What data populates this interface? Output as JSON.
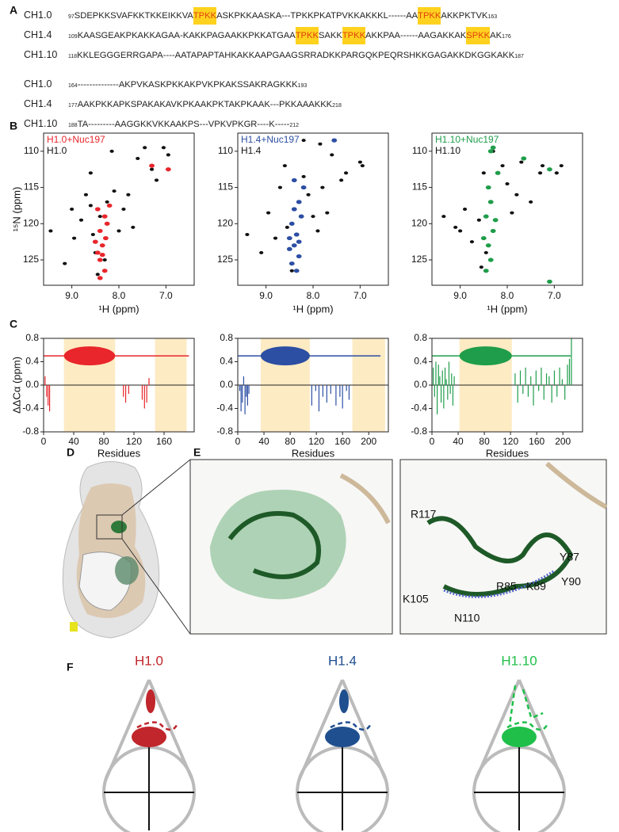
{
  "panel_labels": [
    "A",
    "B",
    "C",
    "D",
    "E",
    "F"
  ],
  "sequences": [
    [
      {
        "name": "CH1.0",
        "start": 97,
        "segments": [
          {
            "text": "SDEPKKSVAFKKTKKEIKKVA",
            "highlight": false
          },
          {
            "text": "TPKK",
            "highlight": true
          },
          {
            "text": "ASKPKKAASKA---TPKKPKATPVKKAKKKL------AA",
            "highlight": false
          },
          {
            "text": "TPKK",
            "highlight": true
          },
          {
            "text": "AKKPKTVK",
            "highlight": false
          }
        ],
        "end": 163
      },
      {
        "name": "CH1.4",
        "start": 109,
        "segments": [
          {
            "text": "KAASGEAKPKAKKAGAA-KAKKPAGAAKKPKKATGAA",
            "highlight": false
          },
          {
            "text": "TPKK",
            "highlight": true
          },
          {
            "text": "SAKK",
            "highlight": false
          },
          {
            "text": "TPKK",
            "highlight": true
          },
          {
            "text": "AKKPAA------AAGAKKAK",
            "highlight": false
          },
          {
            "text": "SPKK",
            "highlight": true
          },
          {
            "text": "AK",
            "highlight": false
          }
        ],
        "end": 176
      },
      {
        "name": "CH1.10",
        "start": 118,
        "segments": [
          {
            "text": "KKLEGGGERRGAPA----AATAPAPTAHKAKKAAPGAAGSRRADKKPARGQKPEQRSHKKGAGAKKDKGGKAKK",
            "highlight": false
          }
        ],
        "end": 187
      }
    ],
    [
      {
        "name": "CH1.0",
        "start": 164,
        "segments": [
          {
            "text": "--------------AKPVKASKPKKAKPVKPKAKSSAKRAGKKK",
            "highlight": false
          }
        ],
        "end": 193
      },
      {
        "name": "CH1.4",
        "start": 177,
        "segments": [
          {
            "text": "AAKPKKAPKSPAKAKAVKPKAAKPKTAKPKAAK---PKKAAAKKK",
            "highlight": false
          }
        ],
        "end": 218
      },
      {
        "name": "CH1.10",
        "start": 188,
        "segments": [
          {
            "text": "TA---------AAGGKKVKKAAKPS---VPKVPKGR----K-----",
            "highlight": false
          }
        ],
        "end": 212
      }
    ]
  ],
  "nmr_axes": {
    "xlim": [
      9.6,
      6.4
    ],
    "xticks": [
      {
        "value": 9,
        "label": "9.0"
      },
      {
        "value": 8,
        "label": "8.0"
      },
      {
        "value": 7,
        "label": "7.0"
      }
    ],
    "ylim": [
      107.5,
      128.5
    ],
    "yticks": [
      110,
      115,
      120,
      125
    ],
    "x_label": "¹H (ppm)",
    "y_label": "¹⁵N (ppm)"
  },
  "nmr": [
    {
      "type": "scatter",
      "legend_bound": "H1.0+Nuc197",
      "legend_free": "H1.0",
      "color": "#e8262b",
      "free": [
        [
          9.45,
          121
        ],
        [
          9.15,
          125.5
        ],
        [
          9.0,
          118
        ],
        [
          8.95,
          122
        ],
        [
          8.8,
          119.5
        ],
        [
          8.7,
          116
        ],
        [
          8.6,
          113
        ],
        [
          8.55,
          121.5
        ],
        [
          8.5,
          124
        ],
        [
          8.45,
          127
        ],
        [
          8.4,
          119
        ],
        [
          8.3,
          125
        ],
        [
          8.25,
          117
        ],
        [
          8.15,
          110
        ],
        [
          8.1,
          115.5
        ],
        [
          8.0,
          121
        ],
        [
          7.9,
          118
        ],
        [
          7.8,
          116
        ],
        [
          7.7,
          120.5
        ],
        [
          7.6,
          111
        ],
        [
          7.45,
          109.5
        ],
        [
          7.3,
          112.5
        ],
        [
          7.2,
          114
        ],
        [
          7.05,
          109.5
        ],
        [
          6.95,
          110.5
        ],
        [
          8.6,
          117.5
        ]
      ],
      "bound": [
        [
          8.45,
          118
        ],
        [
          8.4,
          121
        ],
        [
          8.35,
          123
        ],
        [
          8.4,
          125
        ],
        [
          8.3,
          126.5
        ],
        [
          8.25,
          120
        ],
        [
          8.45,
          124
        ],
        [
          8.3,
          119
        ],
        [
          8.2,
          117.5
        ],
        [
          8.4,
          127.5
        ],
        [
          8.5,
          122.5
        ],
        [
          7.3,
          112
        ],
        [
          6.95,
          112.5
        ],
        [
          8.35,
          124.3
        ],
        [
          8.28,
          122
        ]
      ]
    },
    {
      "type": "scatter",
      "legend_bound": "H1.4+Nuc197",
      "legend_free": "H1.4",
      "color": "#2c4ea3",
      "free": [
        [
          9.4,
          121.5
        ],
        [
          9.1,
          124
        ],
        [
          8.95,
          118.5
        ],
        [
          8.8,
          122
        ],
        [
          8.7,
          115
        ],
        [
          8.6,
          112
        ],
        [
          8.55,
          120.5
        ],
        [
          8.45,
          126.5
        ],
        [
          8.2,
          113.5
        ],
        [
          8.1,
          116
        ],
        [
          8.0,
          119
        ],
        [
          7.9,
          121
        ],
        [
          7.8,
          115
        ],
        [
          7.7,
          118.5
        ],
        [
          7.6,
          110.5
        ],
        [
          7.4,
          114
        ],
        [
          7.3,
          113
        ],
        [
          7.0,
          111.5
        ],
        [
          6.95,
          112
        ],
        [
          8.2,
          108.5
        ],
        [
          7.85,
          109
        ]
      ],
      "bound": [
        [
          8.4,
          118
        ],
        [
          8.45,
          120
        ],
        [
          8.35,
          121.5
        ],
        [
          8.4,
          123
        ],
        [
          8.3,
          124.5
        ],
        [
          8.45,
          125.5
        ],
        [
          8.35,
          126.5
        ],
        [
          8.25,
          119
        ],
        [
          8.5,
          122
        ],
        [
          8.3,
          117
        ],
        [
          8.2,
          115
        ],
        [
          8.4,
          114
        ],
        [
          8.5,
          123.5
        ],
        [
          8.3,
          122.5
        ],
        [
          7.55,
          108.5
        ]
      ]
    },
    {
      "type": "scatter",
      "legend_bound": "H1.10+Nuc197",
      "legend_free": "H1.10",
      "color": "#1f9d4a",
      "free": [
        [
          9.35,
          119
        ],
        [
          9.1,
          120.5
        ],
        [
          9.0,
          121
        ],
        [
          8.9,
          118
        ],
        [
          8.75,
          122.5
        ],
        [
          8.6,
          119.5
        ],
        [
          8.5,
          113
        ],
        [
          8.45,
          124
        ],
        [
          8.3,
          110
        ],
        [
          8.1,
          112
        ],
        [
          8.0,
          114.5
        ],
        [
          7.9,
          118.5
        ],
        [
          7.8,
          116
        ],
        [
          7.7,
          111.5
        ],
        [
          7.5,
          117
        ],
        [
          7.3,
          113
        ],
        [
          7.25,
          112
        ],
        [
          6.95,
          113
        ],
        [
          6.85,
          112
        ],
        [
          8.55,
          126
        ]
      ],
      "bound": [
        [
          8.4,
          115
        ],
        [
          8.35,
          117
        ],
        [
          8.45,
          119
        ],
        [
          8.3,
          121
        ],
        [
          8.4,
          123
        ],
        [
          8.35,
          125
        ],
        [
          8.45,
          126.5
        ],
        [
          8.25,
          119.5
        ],
        [
          8.5,
          122
        ],
        [
          8.35,
          110
        ],
        [
          8.3,
          109.5
        ],
        [
          7.65,
          111
        ],
        [
          7.1,
          112.5
        ],
        [
          7.1,
          128
        ],
        [
          8.2,
          113
        ]
      ]
    }
  ],
  "shift_axes": {
    "ylim": [
      -0.8,
      0.8
    ],
    "yticks": [
      -0.8,
      -0.4,
      {
        "value": 0,
        "label": "0.0"
      },
      0.4,
      0.8
    ],
    "y_label": "ΔΔCα (ppm)",
    "x_label": "Residues",
    "domain_level": 0.5
  },
  "shifts": [
    {
      "type": "bar",
      "color": "#e8262b",
      "xlim": [
        0,
        200
      ],
      "xticks": [
        0,
        40,
        80,
        120,
        160
      ],
      "shaded": [
        [
          27,
          95
        ],
        [
          148,
          190
        ]
      ],
      "length": 193,
      "residues": [
        2,
        4,
        6,
        8,
        106,
        109,
        113,
        131,
        134,
        137,
        140
      ],
      "values": [
        0.15,
        -0.2,
        -0.35,
        -0.45,
        -0.2,
        -0.3,
        -0.15,
        -0.25,
        -0.4,
        -0.3,
        0.12
      ]
    },
    {
      "type": "bar",
      "color": "#2c4ea3",
      "xlim": [
        0,
        230
      ],
      "xticks": [
        0,
        40,
        80,
        120,
        160,
        200
      ],
      "shaded": [
        [
          35,
          110
        ],
        [
          175,
          225
        ]
      ],
      "length": 218,
      "residues": [
        3,
        5,
        7,
        9,
        11,
        13,
        15,
        17,
        113,
        119,
        124,
        130,
        136,
        142,
        150,
        156,
        160,
        166,
        170
      ],
      "values": [
        -0.1,
        -0.45,
        -0.3,
        0.15,
        -0.5,
        -0.2,
        -0.35,
        -0.15,
        -0.35,
        -0.1,
        -0.45,
        -0.2,
        -0.3,
        -0.15,
        -0.35,
        -0.2,
        -0.4,
        -0.1,
        -0.25
      ]
    },
    {
      "type": "bar",
      "color": "#1f9d4a",
      "xlim": [
        0,
        230
      ],
      "xticks": [
        0,
        40,
        80,
        120,
        160,
        200
      ],
      "shaded": [
        [
          42,
          122
        ]
      ],
      "length": 212,
      "residues": [
        2,
        4,
        6,
        8,
        10,
        12,
        14,
        16,
        18,
        20,
        22,
        24,
        26,
        28,
        30,
        32,
        34,
        127,
        131,
        135,
        139,
        143,
        147,
        151,
        155,
        159,
        163,
        167,
        171,
        175,
        179,
        183,
        187,
        191,
        195,
        199,
        203,
        207,
        210,
        213
      ],
      "values": [
        0.3,
        -0.2,
        0.4,
        -0.5,
        0.35,
        0.15,
        -0.3,
        0.25,
        -0.4,
        0.3,
        0.1,
        -0.25,
        0.4,
        -0.15,
        0.2,
        -0.35,
        0.15,
        0.2,
        -0.3,
        0.25,
        -0.15,
        0.3,
        -0.2,
        0.15,
        -0.35,
        0.25,
        -0.1,
        0.3,
        -0.25,
        0.2,
        0.15,
        -0.3,
        0.25,
        -0.2,
        0.3,
        0.1,
        -0.25,
        0.35,
        0.45,
        0.8
      ]
    }
  ],
  "structure_labels": [
    "R117",
    "Y87",
    "Y90",
    "K105",
    "R85",
    "K89",
    "N110"
  ],
  "cartoons": [
    {
      "label": "H1.0",
      "color": "#c0262b"
    },
    {
      "label": "H1.4",
      "color": "#1f4f8f"
    },
    {
      "label": "H1.10",
      "color": "#1fbf4a"
    }
  ]
}
